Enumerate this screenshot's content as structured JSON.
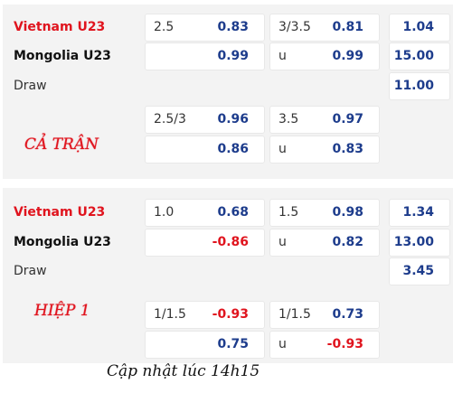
{
  "sections": [
    {
      "home": "Vietnam U23",
      "away": "Mongolia U23",
      "draw": "Draw",
      "label": "CẢ TRẬN",
      "main": {
        "handicap": {
          "line": "2.5",
          "home": "0.83",
          "away": "0.99"
        },
        "over_under": {
          "line": "3/3.5",
          "over": "0.81",
          "under_label": "u",
          "under": "0.99"
        },
        "one_x_two": {
          "home": "1.04",
          "away": "15.00",
          "draw": "11.00"
        }
      },
      "alt": {
        "handicap": {
          "line": "2.5/3",
          "home": "0.96",
          "away": "0.86"
        },
        "over_under": {
          "line": "3.5",
          "over": "0.97",
          "under_label": "u",
          "under": "0.83"
        }
      }
    },
    {
      "home": "Vietnam U23",
      "away": "Mongolia U23",
      "draw": "Draw",
      "label": "HIỆP 1",
      "main": {
        "handicap": {
          "line": "1.0",
          "home": "0.68",
          "away": "-0.86"
        },
        "over_under": {
          "line": "1.5",
          "over": "0.98",
          "under_label": "u",
          "under": "0.82"
        },
        "one_x_two": {
          "home": "1.34",
          "away": "13.00",
          "draw": "3.45"
        }
      },
      "alt": {
        "handicap": {
          "line": "1/1.5",
          "home": "-0.93",
          "away": "0.75"
        },
        "over_under": {
          "line": "1/1.5",
          "over": "0.73",
          "under_label": "u",
          "under": "-0.93"
        }
      }
    }
  ],
  "footer": "Cập nhật lúc 14h15"
}
